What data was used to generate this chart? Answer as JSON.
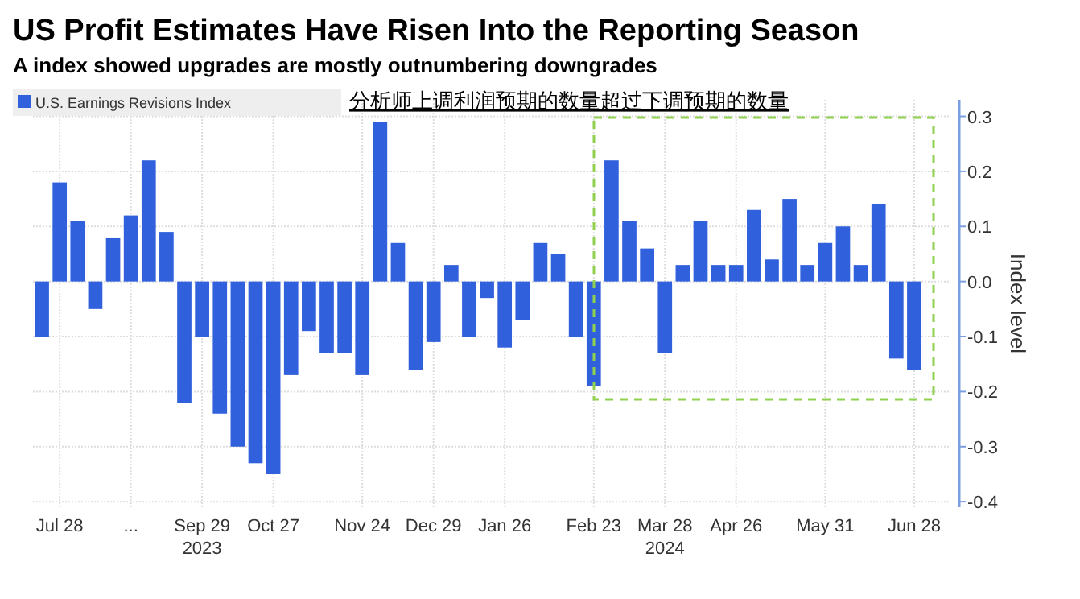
{
  "chart_data": {
    "type": "bar",
    "title": "US Profit Estimates Have Risen Into the Reporting Season",
    "subtitle": "A index showed upgrades are mostly outnumbering downgrades",
    "ylabel": "Index level",
    "categories": [
      null,
      "Jul 28",
      null,
      null,
      null,
      "...",
      null,
      null,
      null,
      "Sep 29\n2023",
      null,
      null,
      null,
      "Oct 27",
      null,
      null,
      null,
      null,
      "Nov 24",
      null,
      null,
      null,
      "Dec 29",
      null,
      null,
      null,
      "Jan 26",
      null,
      null,
      null,
      null,
      "Feb 23",
      null,
      null,
      null,
      "Mar 28\n2024",
      null,
      null,
      null,
      "Apr 26",
      null,
      null,
      null,
      null,
      "May 31",
      null,
      null,
      null,
      null,
      "Jun 28"
    ],
    "series": [
      {
        "name": "U.S. Earnings Revisions Index",
        "color": "#3060dc",
        "values": [
          -0.1,
          0.18,
          0.11,
          -0.05,
          0.08,
          0.12,
          0.22,
          0.09,
          -0.22,
          -0.1,
          -0.24,
          -0.3,
          -0.33,
          -0.35,
          -0.17,
          -0.09,
          -0.13,
          -0.13,
          -0.17,
          0.29,
          0.07,
          -0.16,
          -0.11,
          0.03,
          -0.1,
          -0.03,
          -0.12,
          -0.07,
          0.07,
          0.05,
          -0.1,
          -0.19,
          0.22,
          0.11,
          0.06,
          -0.13,
          0.03,
          0.11,
          0.03,
          0.03,
          0.13,
          0.04,
          0.15,
          0.03,
          0.07,
          0.1,
          0.03,
          0.14,
          -0.14,
          -0.16
        ]
      }
    ],
    "ylim": [
      -0.41,
      0.33
    ],
    "yticks": [
      {
        "value": 0.3,
        "label": "0.3"
      },
      {
        "value": 0.2,
        "label": "0.2"
      },
      {
        "value": 0.1,
        "label": "0.1"
      },
      {
        "value": 0,
        "label": "0.0"
      },
      {
        "value": -0.1,
        "label": "-0.1"
      },
      {
        "value": -0.2,
        "label": "-0.2"
      },
      {
        "value": -0.3,
        "label": "-0.3"
      },
      {
        "value": -0.4,
        "label": "-0.4"
      }
    ],
    "grid": true,
    "legend": "top left",
    "annotations": [
      "分析师上调利润预期的数量超过下调预期的数量"
    ]
  }
}
